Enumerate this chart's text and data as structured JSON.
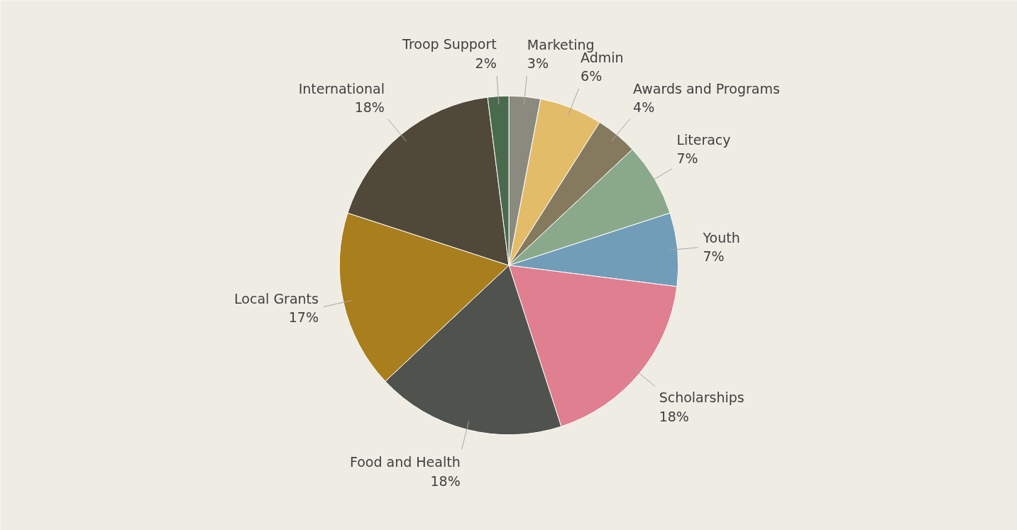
{
  "chart_data": {
    "type": "pie",
    "categories": [
      "Marketing",
      "Admin",
      "Awards and Programs",
      "Literacy",
      "Youth",
      "Scholarships",
      "Food and Health",
      "Local Grants",
      "International",
      "Troop Support"
    ],
    "values": [
      3,
      6,
      4,
      7,
      7,
      18,
      18,
      17,
      18,
      2
    ],
    "value_labels": [
      "3%",
      "6%",
      "4%",
      "7%",
      "7%",
      "18%",
      "18%",
      "17%",
      "18%",
      "2%"
    ],
    "colors": [
      "#8b8a7e",
      "#e3bc69",
      "#857a5e",
      "#8aa98a",
      "#729db8",
      "#df7f8f",
      "#50534d",
      "#a97e1c",
      "#504839",
      "#4a6a4d"
    ]
  }
}
